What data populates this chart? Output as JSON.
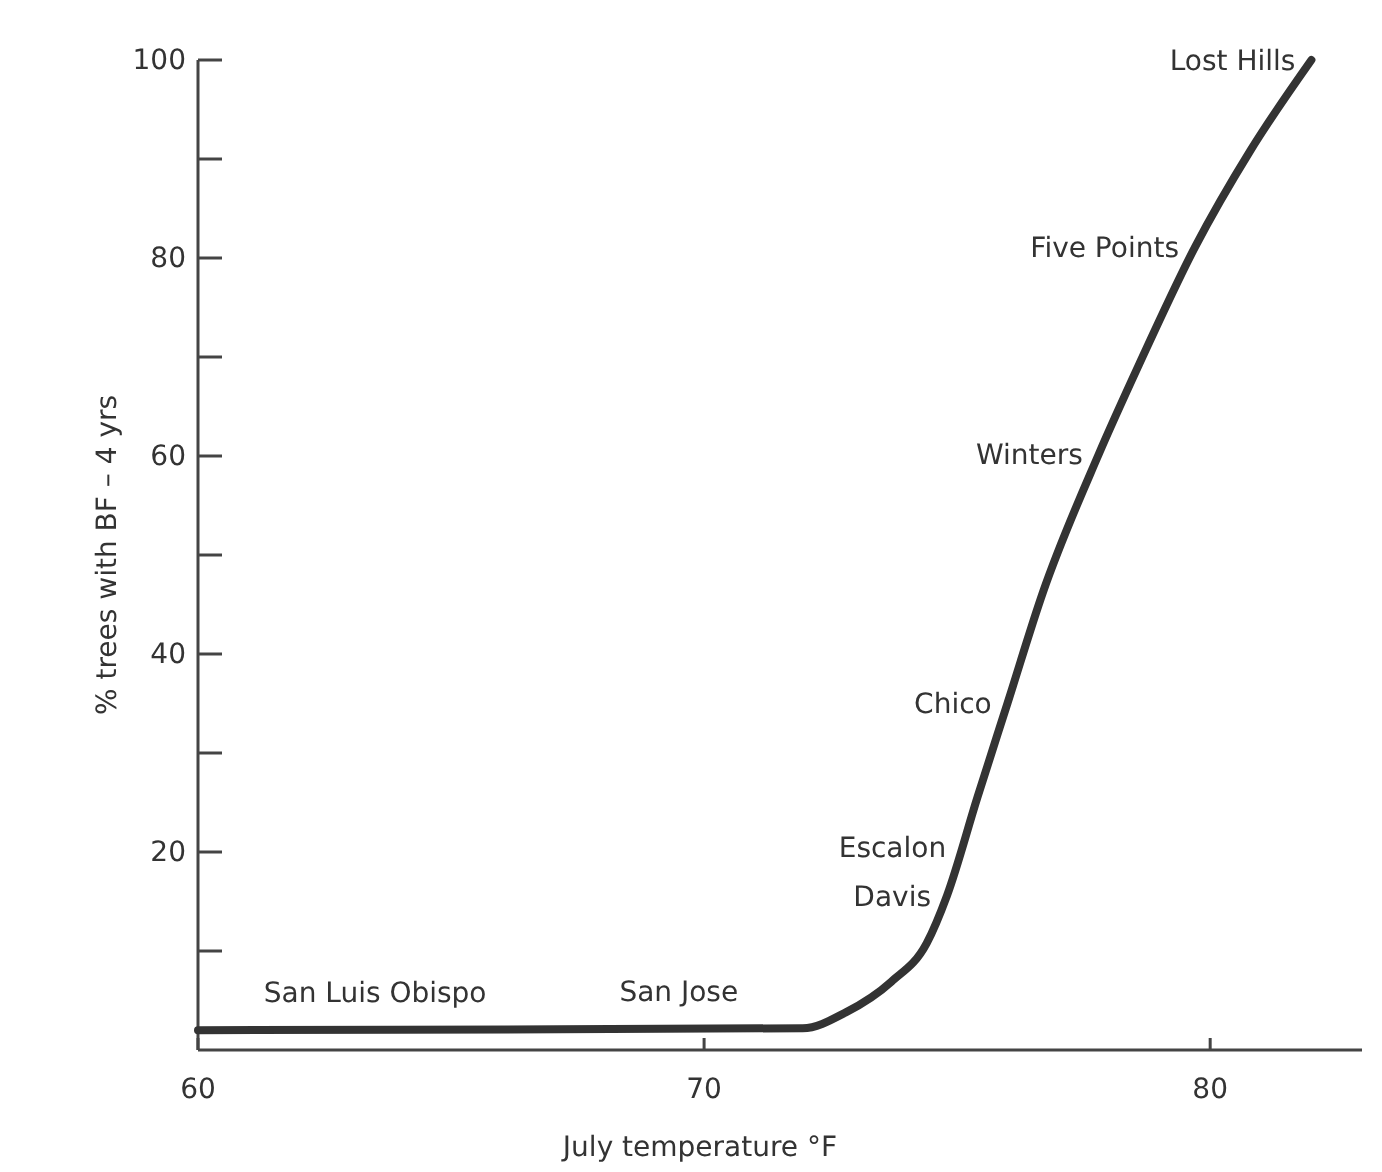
{
  "chart_data": {
    "type": "line",
    "xlabel": "July temperature °F",
    "ylabel": "% trees with BF – 4 yrs",
    "x": [
      60,
      71.95,
      72.8,
      73.7,
      74.4,
      74.8,
      75.4,
      76.0,
      76.7,
      77.8,
      78.6,
      79.7,
      80.8,
      82.0
    ],
    "series": [
      {
        "color": "#333333",
        "values": [
          2,
          2.2,
          3.8,
          6.9,
          10.8,
          15.6,
          25.5,
          35.1,
          46.3,
          60.2,
          69.3,
          81.1,
          90.9,
          100
        ]
      }
    ],
    "xlim": [
      60,
      83
    ],
    "xticks": [
      60,
      70,
      80
    ],
    "ylim": [
      0,
      100
    ],
    "yticks": [
      {
        "value": 10,
        "label": null
      },
      20,
      {
        "value": 30,
        "label": null
      },
      40,
      {
        "value": 50,
        "label": null
      },
      60,
      {
        "value": 70,
        "label": null
      },
      80,
      {
        "value": 90,
        "label": null
      },
      100
    ],
    "grid": false,
    "marker": "none",
    "line_style": "solid",
    "annotations": [
      {
        "text": "Lost Hills",
        "x": 82.0,
        "y": 100
      },
      {
        "text": "Five Points",
        "x": 79.7,
        "y": 81.1
      },
      {
        "text": "Winters",
        "x": 77.8,
        "y": 60.2
      },
      {
        "text": "Chico",
        "x": 76.0,
        "y": 35.1
      },
      {
        "text": "Escalon",
        "x": 75.1,
        "y": 20.5
      },
      {
        "text": "Davis",
        "x": 74.8,
        "y": 15.6
      },
      {
        "text": "San Jose",
        "x": 69.5,
        "y": 2.1
      },
      {
        "text": "San Luis Obispo",
        "x": 63.5,
        "y": 2
      }
    ]
  }
}
